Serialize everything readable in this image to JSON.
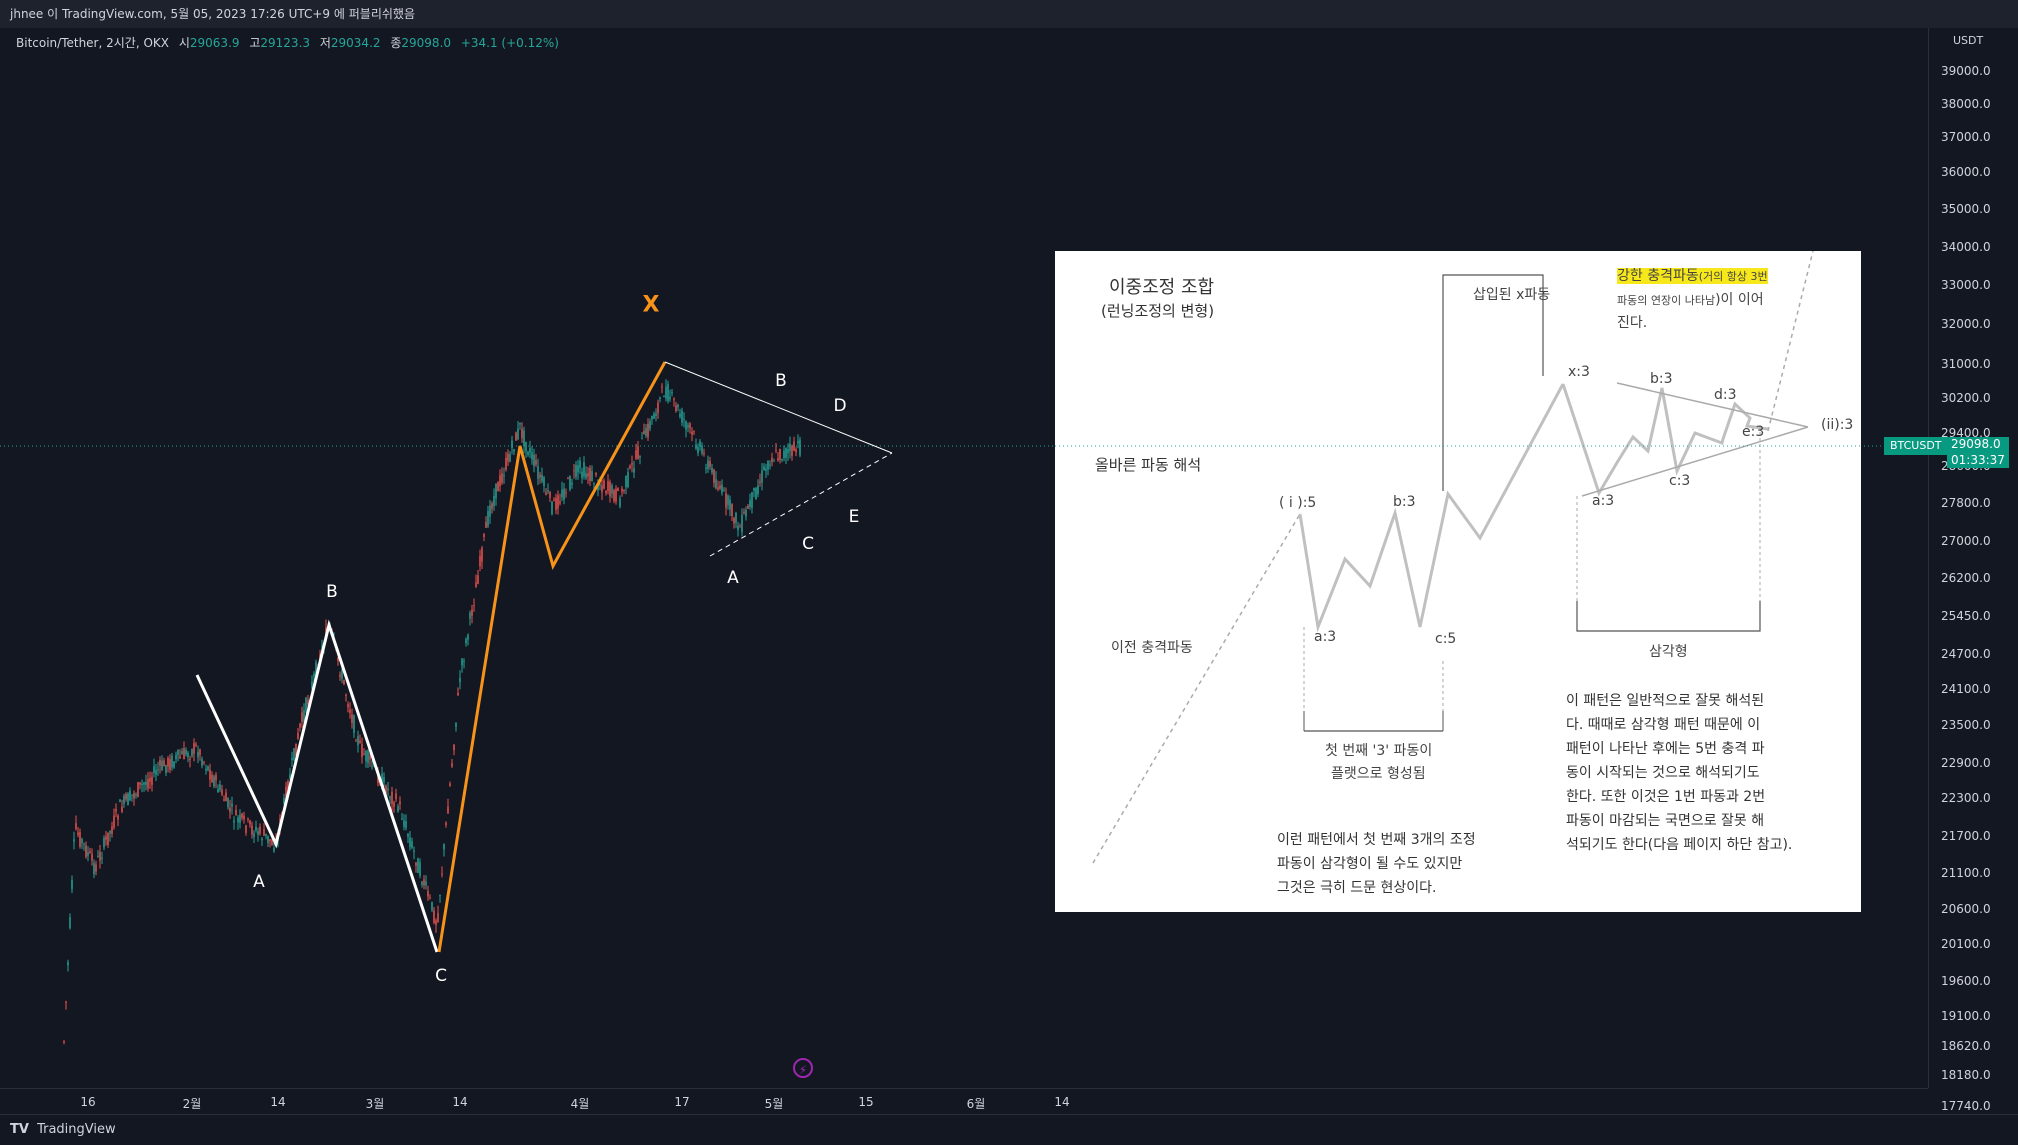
{
  "header": {
    "publish_line": "jhnee 이 TradingView.com, 5월 05, 2023 17:26 UTC+9 에 퍼블리쉬했음"
  },
  "legend": {
    "symbol": "Bitcoin/Tether, 2시간, OKX",
    "open_label": "시",
    "open_value": "29063.9",
    "high_label": "고",
    "high_value": "29123.3",
    "low_label": "저",
    "low_value": "29034.2",
    "close_label": "종",
    "close_value": "29098.0",
    "change": "+34.1 (+0.12%)"
  },
  "price_axis": {
    "unit": "USDT",
    "ticks": [
      "39000.0",
      "38000.0",
      "37000.0",
      "36000.0",
      "35000.0",
      "34000.0",
      "33000.0",
      "32000.0",
      "31000.0",
      "30200.0",
      "29400.0",
      "28600.0",
      "27800.0",
      "27000.0",
      "26200.0",
      "25450.0",
      "24700.0",
      "24100.0",
      "23500.0",
      "22900.0",
      "22300.0",
      "21700.0",
      "21100.0",
      "20600.0",
      "20100.0",
      "19600.0",
      "19100.0",
      "18620.0",
      "18180.0",
      "17740.0"
    ]
  },
  "last_price": {
    "symbol": "BTCUSDT",
    "price": "29098.0",
    "countdown": "01:33:37",
    "color": "#089981"
  },
  "time_axis": {
    "ticks": [
      "16",
      "2월",
      "14",
      "3월",
      "14",
      "4월",
      "17",
      "5월",
      "15",
      "6월",
      "14"
    ]
  },
  "waves": {
    "x_label": "X",
    "white_labels": [
      "A",
      "B",
      "C"
    ],
    "triangle_labels": [
      "A",
      "B",
      "C",
      "D",
      "E"
    ],
    "orange_color": "#f7931a",
    "white_color": "#ffffff"
  },
  "inset": {
    "title": "이중조정 조합",
    "subtitle": "(런닝조정의 변형)",
    "correct_count": "올바른 파동 해석",
    "prior_impulse": "이전 충격파동",
    "inserted_x": "삽입된 x파동",
    "strong_impulse_hl": "강한 충격파동",
    "strong_impulse_small": "(거의 항상 3번",
    "strong_impulse_line2_small": "파동의 연장이 나타남",
    "strong_impulse_line2_rest": ")이 이어",
    "strong_impulse_line3": "진다.",
    "point_labels": {
      "i5": "( i ):5",
      "a3": "a:3",
      "b3": "b:3",
      "c5": "c:5",
      "x3": "x:3",
      "ta3": "a:3",
      "tb3": "b:3",
      "tc3": "c:3",
      "td3": "d:3",
      "te3": "e:3",
      "ii3": "(ii):3"
    },
    "flat_caption_1": "첫 번째 '3' 파동이",
    "flat_caption_2": "플랫으로 형성됨",
    "triangle_caption": "삼각형",
    "note_left": "이런 패턴에서 첫 번째 3개의 조정\n파동이 삼각형이 될 수도 있지만\n그것은 극히 드문 현상이다.",
    "note_right": "이 패턴은 일반적으로 잘못 해석된\n다. 때때로 삼각형 패턴 때문에 이\n패턴이 나타난 후에는 5번 충격 파\n동이 시작되는 것으로 해석되기도\n한다. 또한 이것은 1번 파동과 2번\n파동이 마감되는 국면으로 잘못 해\n석되기도 한다(다음 페이지 하단 참고)."
  },
  "footer": {
    "brand": "TradingView",
    "logo": "TV"
  }
}
